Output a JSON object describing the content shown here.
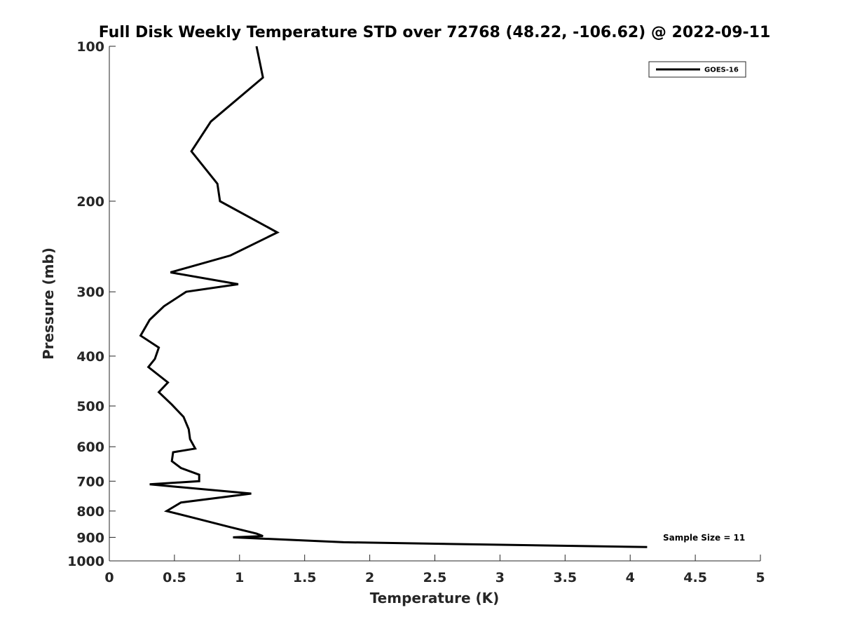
{
  "chart_data": {
    "type": "line",
    "title": "Full Disk Weekly Temperature STD over 72768 (48.22, -106.62) @ 2022-09-11",
    "xlabel": "Temperature (K)",
    "ylabel": "Pressure (mb)",
    "xlim": [
      0,
      5
    ],
    "ylim": [
      1000,
      100
    ],
    "yscale": "log",
    "y_reversed": true,
    "xticks": [
      0,
      0.5,
      1,
      1.5,
      2,
      2.5,
      3,
      3.5,
      4,
      4.5,
      5
    ],
    "xtick_labels": [
      "0",
      "0.5",
      "1",
      "1.5",
      "2",
      "2.5",
      "3",
      "3.5",
      "4",
      "4.5",
      "5"
    ],
    "yticks": [
      100,
      200,
      300,
      400,
      500,
      600,
      700,
      800,
      900,
      1000
    ],
    "ytick_labels": [
      "100",
      "200",
      "300",
      "400",
      "500",
      "600",
      "700",
      "800",
      "900",
      "1000"
    ],
    "grid": false,
    "legend_position": "top-right",
    "annotation": "Sample Size = 11",
    "series": [
      {
        "name": "GOES-16",
        "color": "#000000",
        "x": [
          1.13,
          1.18,
          0.78,
          0.63,
          0.83,
          0.85,
          1.29,
          0.93,
          0.47,
          0.99,
          0.59,
          0.42,
          0.31,
          0.24,
          0.38,
          0.35,
          0.3,
          0.45,
          0.38,
          0.48,
          0.57,
          0.61,
          0.62,
          0.66,
          0.49,
          0.48,
          0.55,
          0.69,
          0.69,
          0.31,
          1.09,
          0.55,
          0.44,
          0.65,
          0.93,
          1.13,
          1.18,
          0.95,
          1.8,
          4.13
        ],
        "y": [
          100,
          115,
          140,
          160,
          185,
          200,
          230,
          255,
          275,
          290,
          300,
          320,
          340,
          365,
          385,
          405,
          420,
          450,
          470,
          497,
          525,
          555,
          580,
          605,
          615,
          640,
          660,
          680,
          700,
          710,
          740,
          770,
          800,
          825,
          860,
          885,
          895,
          900,
          920,
          940
        ]
      }
    ]
  }
}
